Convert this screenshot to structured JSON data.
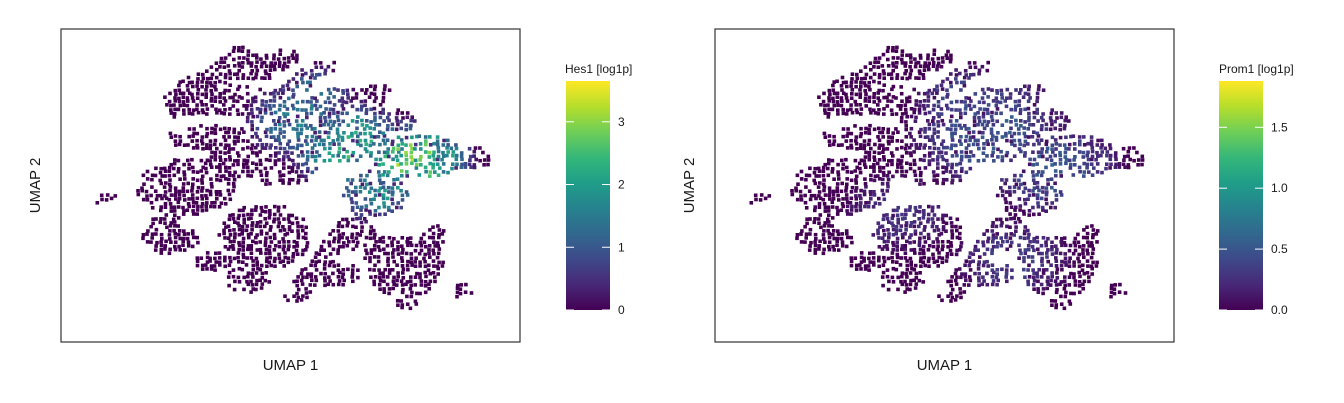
{
  "colormap": [
    "#440154",
    "#482878",
    "#3e4989",
    "#31688e",
    "#26828e",
    "#1f9e89",
    "#35b779",
    "#6ece58",
    "#b5de2b",
    "#fde725"
  ],
  "chart_data": [
    {
      "type": "scatter",
      "title": "",
      "xlabel": "UMAP 1",
      "ylabel": "UMAP 2",
      "color_label": "Hes1 [log1p]",
      "color_range": [
        0,
        3.65
      ],
      "color_ticks": [
        0,
        1,
        2,
        3
      ],
      "tick_labels": [
        "0",
        "1",
        "2",
        "3"
      ],
      "grid": false,
      "legend": "right",
      "hotspots": [
        {
          "x": 8.6,
          "y": 5.9,
          "r": 1.6,
          "level": 2.4
        },
        {
          "x": 7.0,
          "y": 6.4,
          "r": 1.7,
          "level": 1.9
        },
        {
          "x": 5.7,
          "y": 7.3,
          "r": 1.5,
          "level": 1.3
        },
        {
          "x": 7.7,
          "y": 4.8,
          "r": 1.2,
          "level": 1.5
        },
        {
          "x": 6.1,
          "y": 8.3,
          "r": 1.0,
          "level": 1.1
        }
      ]
    },
    {
      "type": "scatter",
      "title": "",
      "xlabel": "UMAP 1",
      "ylabel": "UMAP 2",
      "color_label": "Prom1 [log1p]",
      "color_range": [
        0,
        1.88
      ],
      "color_ticks": [
        0,
        0.5,
        1.0,
        1.5
      ],
      "tick_labels": [
        "0.0",
        "0.5",
        "1.0",
        "1.5"
      ],
      "grid": false,
      "legend": "right",
      "hotspots": [
        {
          "x": 6.6,
          "y": 6.9,
          "r": 2.2,
          "level": 0.45
        },
        {
          "x": 8.3,
          "y": 5.6,
          "r": 1.8,
          "level": 0.45
        },
        {
          "x": 5.9,
          "y": 8.1,
          "r": 1.3,
          "level": 0.35
        },
        {
          "x": 7.2,
          "y": 2.5,
          "r": 1.6,
          "level": 0.3
        },
        {
          "x": 4.3,
          "y": 4.1,
          "r": 1.5,
          "level": 0.25
        }
      ]
    }
  ]
}
